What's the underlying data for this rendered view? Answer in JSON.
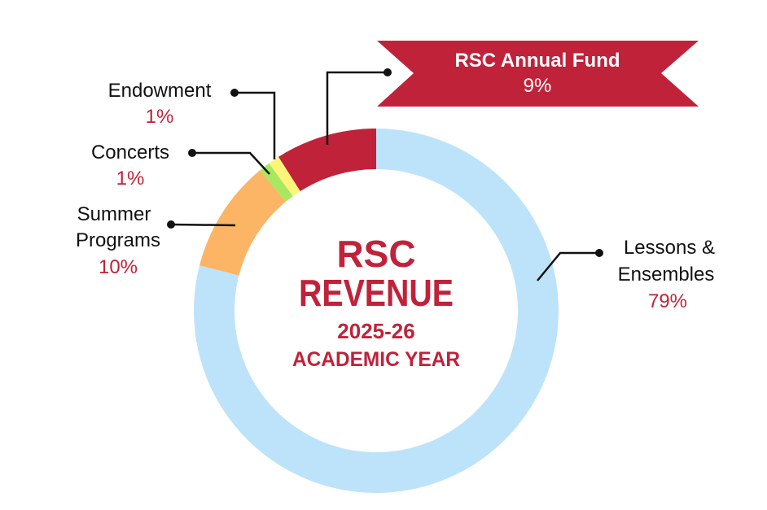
{
  "chart_data": {
    "type": "pie",
    "donut": true,
    "title": "RSC REVENUE",
    "subtitle": "2025-26 ACADEMIC YEAR",
    "title_lines": [
      "RSC",
      "REVENUE"
    ],
    "subtitle_lines": [
      "2025-26",
      "ACADEMIC YEAR"
    ],
    "slices": [
      {
        "label": "RSC Annual Fund",
        "value": 9,
        "value_label": "9%",
        "color": "#c0223a"
      },
      {
        "label": "Endowment",
        "value": 1,
        "value_label": "1%",
        "color": "#fdf57a"
      },
      {
        "label": "Concerts",
        "value": 1,
        "value_label": "1%",
        "color": "#a8e860"
      },
      {
        "label": "Summer Programs",
        "value": 10,
        "value_label": "10%",
        "color": "#fbb565"
      },
      {
        "label": "Lessons & Ensembles",
        "value": 79,
        "value_label": "79%",
        "color": "#bde3fa"
      }
    ],
    "direction": "counterclockwise from top",
    "accent_color": "#c0223a"
  }
}
